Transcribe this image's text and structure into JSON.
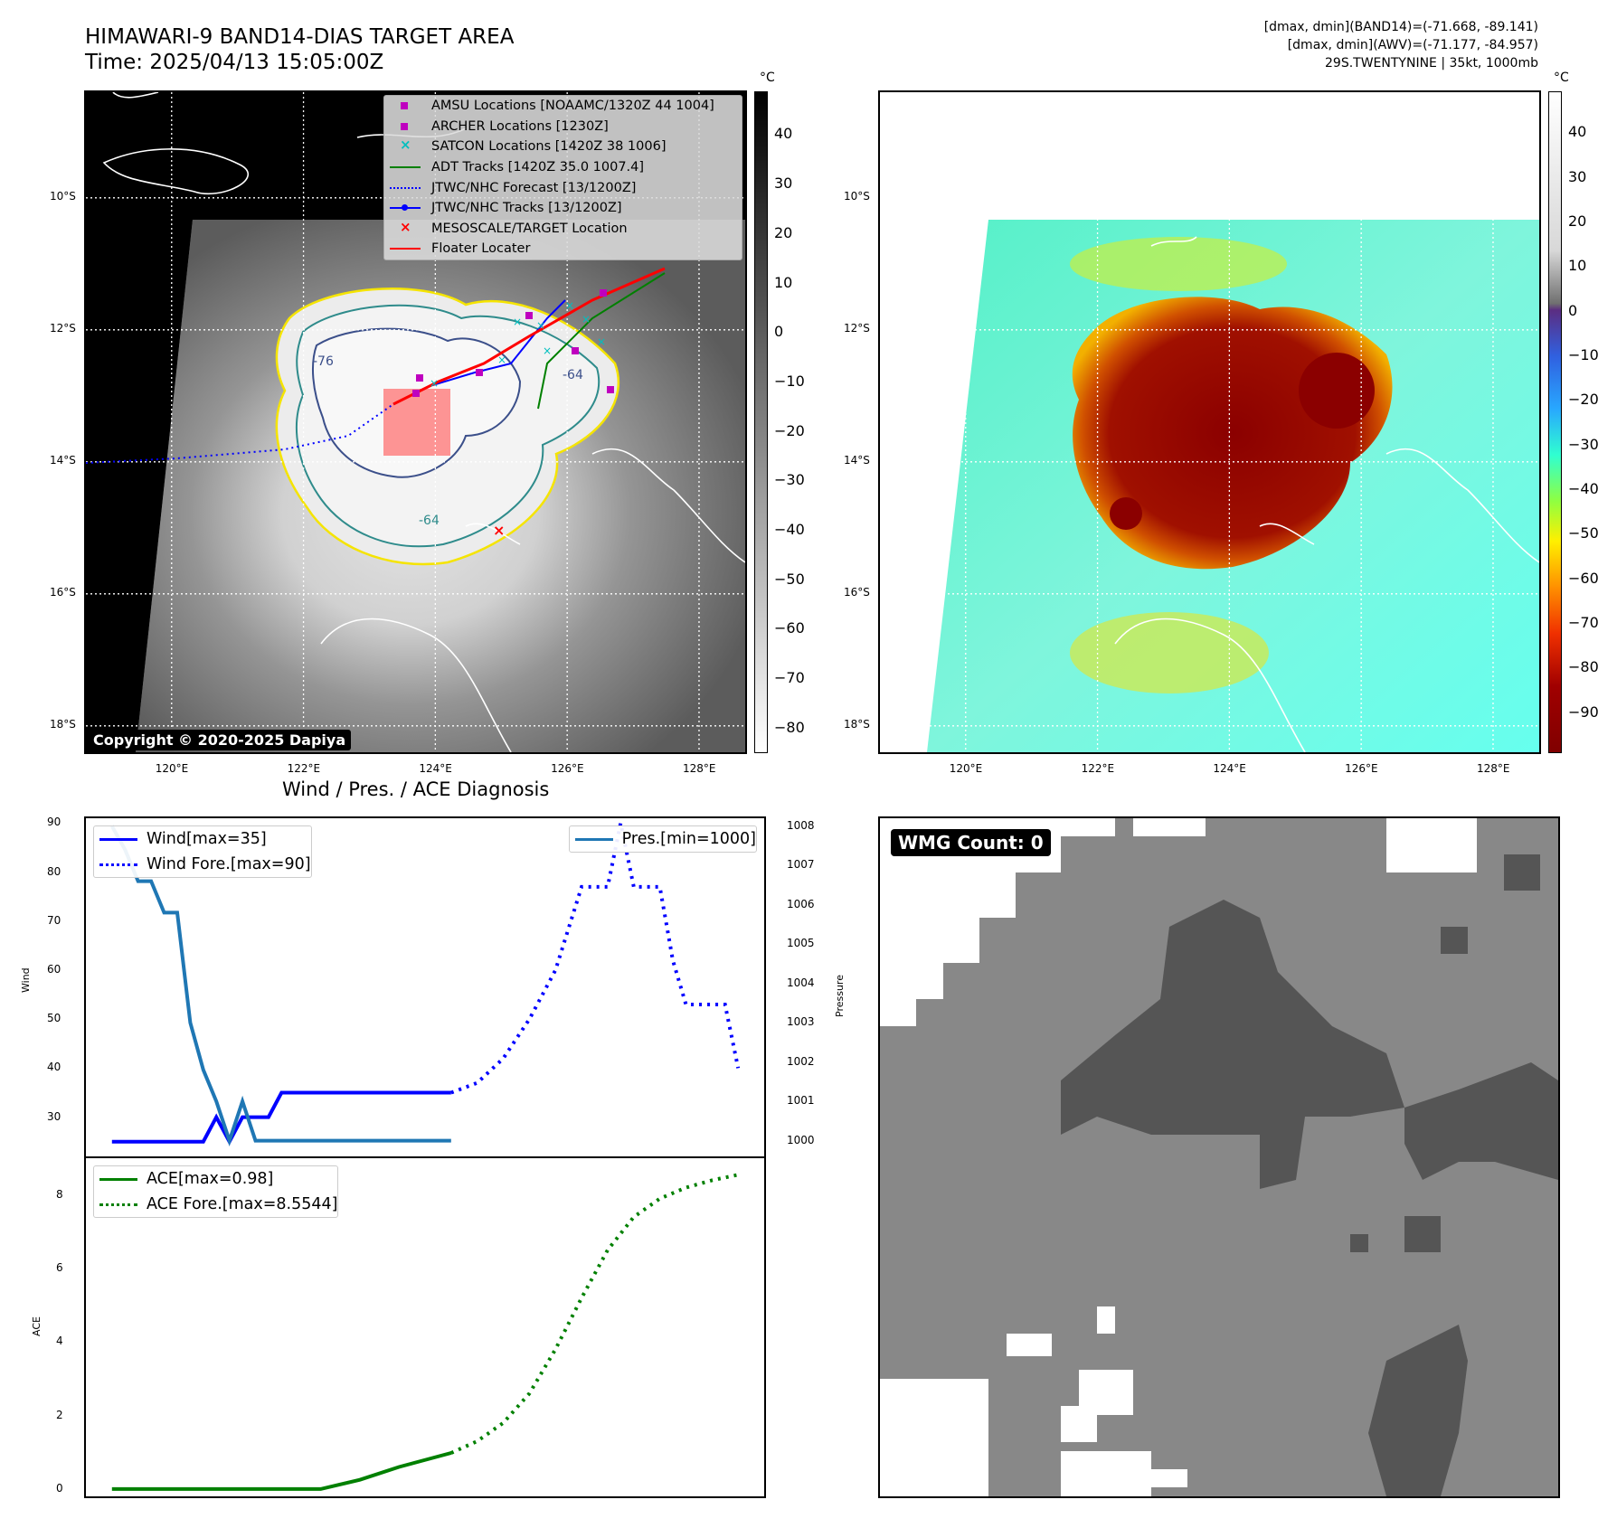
{
  "header": {
    "title_line1": "HIMAWARI-9 BAND14-DIAS TARGET AREA",
    "title_line2": "Time: 2025/04/13 15:05:00Z",
    "info_line1": "[dmax, dmin](BAND14)=(-71.668, -89.141)",
    "info_line2": "[dmax, dmin](AWV)=(-71.177, -84.957)",
    "info_line3": "29S.TWENTYNINE | 35kt, 1000mb"
  },
  "map": {
    "lat_labels": [
      "10°S",
      "12°S",
      "14°S",
      "16°S",
      "18°S"
    ],
    "lon_labels": [
      "120°E",
      "122°E",
      "124°E",
      "126°E",
      "128°E"
    ],
    "lat_values": [
      -10,
      -12,
      -14,
      -16,
      -18
    ],
    "lon_values": [
      120,
      122,
      124,
      126,
      128
    ],
    "lon_range": [
      118.7,
      128.7
    ],
    "lat_range": [
      -18.4,
      -8.4
    ],
    "contour_labels": [
      "-76",
      "-64",
      "-64"
    ],
    "copyright": "Copyright © 2020-2025 Dapiya",
    "legend": [
      {
        "label": "AMSU Locations [NOAAMC/1320Z 44 1004]",
        "color": "#bf00bf",
        "marker": "square"
      },
      {
        "label": "ARCHER Locations [1230Z]",
        "color": "#bf00bf",
        "marker": "square"
      },
      {
        "label": "SATCON Locations [1420Z 38 1006]",
        "color": "#00bfbf",
        "marker": "x"
      },
      {
        "label": "ADT Tracks [1420Z 35.0 1007.4]",
        "color": "#008000",
        "marker": "line"
      },
      {
        "label": "JTWC/NHC Forecast [13/1200Z]",
        "color": "#0000ff",
        "marker": "dotted"
      },
      {
        "label": "JTWC/NHC Tracks [13/1200Z]",
        "color": "#0000ff",
        "marker": "line-dot"
      },
      {
        "label": "MESOSCALE/TARGET Location",
        "color": "#ff0000",
        "marker": "x"
      },
      {
        "label": "Floater Locater",
        "color": "#ff0000",
        "marker": "line"
      }
    ],
    "colorbar_unit": "°C",
    "band14_ticks": [
      "40",
      "30",
      "20",
      "10",
      "0",
      "−10",
      "−20",
      "−30",
      "−40",
      "−50",
      "−60",
      "−70",
      "−80"
    ],
    "band14_values": [
      40,
      30,
      20,
      10,
      0,
      -10,
      -20,
      -30,
      -40,
      -50,
      -60,
      -70,
      -80
    ],
    "awv_ticks": [
      "40",
      "30",
      "20",
      "10",
      "0",
      "−10",
      "−20",
      "−30",
      "−40",
      "−50",
      "−60",
      "−70",
      "−80",
      "−90"
    ],
    "awv_values": [
      40,
      30,
      20,
      10,
      0,
      -10,
      -20,
      -30,
      -40,
      -50,
      -60,
      -70,
      -80,
      -90
    ]
  },
  "diagnosis": {
    "title": "Wind / Pres. / ACE Diagnosis",
    "wind_ylabel": "Wind",
    "pres_ylabel": "Pressure",
    "ace_ylabel": "ACE",
    "legend_wind": "Wind[max=35]",
    "legend_wind_fore": "Wind Fore.[max=90]",
    "legend_pres": "Pres.[min=1000]",
    "legend_ace": "ACE[max=0.98]",
    "legend_ace_fore": "ACE Fore.[max=8.5544]",
    "wind_ticks": [
      "90",
      "80",
      "70",
      "60",
      "50",
      "40",
      "30"
    ],
    "pres_ticks": [
      "1008",
      "1007",
      "1006",
      "1005",
      "1004",
      "1003",
      "1002",
      "1001",
      "1000"
    ],
    "ace_ticks": [
      "8",
      "6",
      "4",
      "2",
      "0"
    ]
  },
  "wmg": {
    "label": "WMG Count: 0"
  },
  "chart_data": [
    {
      "type": "line",
      "title": "Wind / Pres. / ACE Diagnosis",
      "x": [
        0,
        1,
        2,
        3,
        4,
        5,
        6,
        7,
        8,
        9,
        10,
        11,
        12,
        13,
        14,
        15,
        16,
        17,
        18,
        19,
        20,
        21,
        22,
        23,
        24,
        25,
        26
      ],
      "series": [
        {
          "name": "Wind[max=35]",
          "axis": "Wind",
          "style": "solid",
          "color": "#0000ff",
          "x": [
            0,
            1,
            2,
            3,
            4,
            5,
            6,
            7,
            8,
            9,
            10,
            11,
            12,
            13,
            14,
            15,
            16,
            17,
            18,
            19,
            20,
            21,
            22,
            23,
            24,
            25,
            26
          ],
          "values": [
            25,
            25,
            25,
            25,
            25,
            25,
            25,
            25,
            30,
            25,
            30,
            30,
            30,
            35,
            35,
            35,
            35,
            35,
            35,
            35,
            35,
            35,
            35,
            35,
            35,
            35,
            35
          ]
        },
        {
          "name": "Wind Fore.[max=90]",
          "axis": "Wind",
          "style": "dotted",
          "color": "#0000ff",
          "x": [
            26,
            28,
            30,
            32,
            34,
            36,
            37,
            38,
            39,
            40,
            41,
            42,
            43,
            44,
            45,
            46,
            47,
            48
          ],
          "values": [
            35,
            37,
            42,
            50,
            60,
            77,
            77,
            77,
            90,
            77,
            77,
            77,
            62,
            53,
            53,
            53,
            53,
            40
          ]
        },
        {
          "name": "Pres.[min=1000]",
          "axis": "Pressure",
          "style": "solid",
          "color": "#1f77b4",
          "x": [
            0,
            1,
            2,
            3,
            4,
            5,
            6,
            7,
            8,
            9,
            10,
            11,
            12,
            13,
            14,
            15,
            16,
            17,
            18,
            19,
            20,
            21,
            22,
            23,
            24,
            25,
            26
          ],
          "values": [
            1008,
            1007.4,
            1006.6,
            1006.6,
            1005.8,
            1005.8,
            1003,
            1001.8,
            1001,
            1000,
            1001,
            1000,
            1000,
            1000,
            1000,
            1000,
            1000,
            1000,
            1000,
            1000,
            1000,
            1000,
            1000,
            1000,
            1000,
            1000,
            1000
          ]
        }
      ],
      "xlim": [
        -2,
        50
      ],
      "wind_ylim": [
        22,
        91
      ],
      "pres_ylim": [
        999.6,
        1008.2
      ]
    },
    {
      "type": "line",
      "ylabel": "ACE",
      "series": [
        {
          "name": "ACE[max=0.98]",
          "style": "solid",
          "color": "#008000",
          "x": [
            0,
            4,
            8,
            12,
            16,
            19,
            22,
            26
          ],
          "values": [
            0,
            0,
            0,
            0,
            0,
            0.25,
            0.6,
            0.98
          ]
        },
        {
          "name": "ACE Fore.[max=8.5544]",
          "style": "dotted",
          "color": "#008000",
          "x": [
            26,
            28,
            30,
            32,
            34,
            36,
            38,
            40,
            42,
            44,
            46,
            48
          ],
          "values": [
            0.98,
            1.3,
            1.8,
            2.6,
            3.8,
            5.2,
            6.5,
            7.4,
            7.9,
            8.2,
            8.4,
            8.55
          ]
        }
      ],
      "xlim": [
        -2,
        50
      ],
      "ylim": [
        -0.2,
        9
      ]
    }
  ]
}
